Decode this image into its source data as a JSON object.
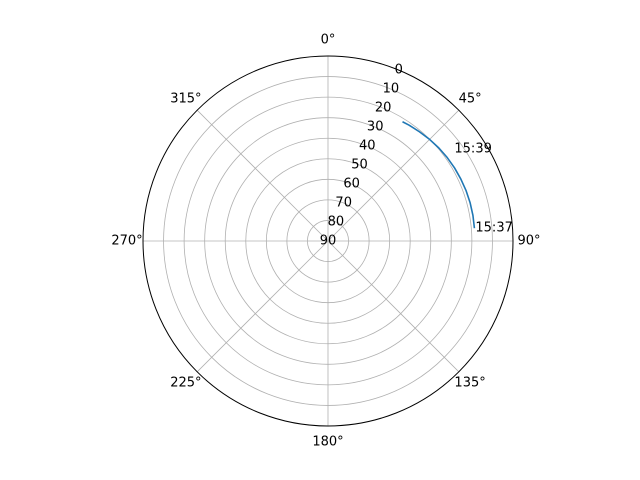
{
  "chart_data": {
    "type": "line",
    "projection": "polar",
    "theta_zero_location": "N",
    "theta_direction": "clockwise",
    "r_inverted": true,
    "rlim": [
      90,
      0
    ],
    "r_ticks": [
      0,
      10,
      20,
      30,
      40,
      50,
      60,
      70,
      80,
      90
    ],
    "r_tick_labels": [
      "0",
      "10",
      "20",
      "30",
      "40",
      "50",
      "60",
      "70",
      "80",
      "90"
    ],
    "theta_ticks": [
      0,
      45,
      90,
      135,
      180,
      225,
      270,
      315
    ],
    "theta_tick_labels": [
      "0°",
      "45°",
      "90°",
      "135°",
      "180°",
      "225°",
      "270°",
      "315°"
    ],
    "grid": true,
    "series": [
      {
        "color": "#1f77b4",
        "theta_deg": [
          85.0,
          80.0,
          75.0,
          70.0,
          65.0,
          60.0,
          55.0,
          50.0,
          45.0,
          40.0,
          35.0,
          32.0
        ],
        "r_deg": [
          18.5,
          18.4,
          18.4,
          18.5,
          18.7,
          18.9,
          19.2,
          19.6,
          20.1,
          20.7,
          21.2,
          21.6
        ]
      }
    ],
    "annotations": [
      {
        "text": "15:37",
        "theta_deg": 85.0,
        "r_deg": 18.0
      },
      {
        "text": "15:39",
        "theta_deg": 54.0,
        "r_deg": 14.0
      }
    ]
  }
}
